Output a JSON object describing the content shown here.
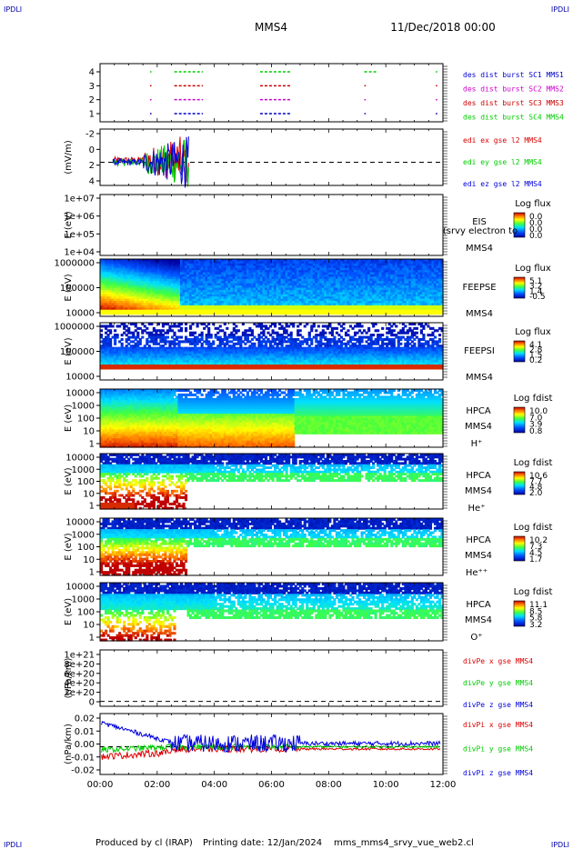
{
  "corner_label": "IPDLI",
  "header": {
    "spacecraft": "MMS4",
    "date": "11/Dec/2018 00:00"
  },
  "footer": {
    "produced_by": "Produced by cl (IRAP)",
    "printing_date": "Printing date: 12/Jan/2024",
    "file": "mms_mms4_srvy_vue_web2.cl"
  },
  "time_axis": {
    "ticks": [
      "00:00",
      "02:00",
      "04:00",
      "06:00",
      "08:00",
      "10:00",
      "12:00"
    ],
    "range_hours": [
      0,
      12
    ]
  },
  "chart_data": [
    {
      "type": "scatter",
      "id": "burst",
      "ylabel": "",
      "ylim": [
        0.5,
        4.5
      ],
      "yticks": [
        "1",
        "2",
        "3",
        "4"
      ],
      "series": [
        {
          "name": "des dist burst SC1 MMS1",
          "color": "#0000cc",
          "level": 1,
          "intervals": [
            [
              1.75,
              1.8
            ],
            [
              2.6,
              3.6
            ],
            [
              5.6,
              6.7
            ],
            [
              9.25,
              9.3
            ],
            [
              11.75,
              11.8
            ]
          ]
        },
        {
          "name": "des dist burst SC2 MMS2",
          "color": "#cc00cc",
          "level": 2,
          "intervals": [
            [
              1.75,
              1.8
            ],
            [
              2.6,
              3.6
            ],
            [
              5.6,
              6.7
            ],
            [
              9.25,
              9.3
            ],
            [
              11.75,
              11.8
            ]
          ]
        },
        {
          "name": "des dist burst SC3 MMS3",
          "color": "#cc0000",
          "level": 3,
          "intervals": [
            [
              1.75,
              1.8
            ],
            [
              2.6,
              3.6
            ],
            [
              5.6,
              6.7
            ],
            [
              9.25,
              9.3
            ],
            [
              11.75,
              11.8
            ]
          ]
        },
        {
          "name": "des dist burst SC4 MMS4",
          "color": "#00cc00",
          "level": 4,
          "intervals": [
            [
              1.75,
              1.8
            ],
            [
              2.6,
              3.6
            ],
            [
              5.6,
              6.7
            ],
            [
              9.25,
              9.7
            ],
            [
              11.75,
              11.8
            ]
          ]
        }
      ]
    },
    {
      "type": "line",
      "id": "edi",
      "ylabel": "(mV/m)",
      "ylim": [
        -3.5,
        5
      ],
      "yticks": [
        "-2",
        "0",
        "2",
        "4"
      ],
      "series": [
        {
          "name": "edi ex gse l2 MMS4",
          "color": "#dd0000"
        },
        {
          "name": "edi ey gse l2 MMS4",
          "color": "#00cc00"
        },
        {
          "name": "edi ez gse l2 MMS4",
          "color": "#0000dd"
        }
      ]
    },
    {
      "type": "heatmap",
      "id": "eis",
      "ylabel": "E (eV)",
      "yticks": [
        "1e+07",
        "1e+06",
        "1e+05",
        "1e+04"
      ],
      "labels": [
        "EIS",
        "(srvy electron to",
        "MMS4"
      ],
      "colorbar": {
        "title": "Log flux",
        "ticks": [
          "0.0",
          "0.0",
          "0.0",
          "0.0"
        ]
      }
    },
    {
      "type": "heatmap",
      "id": "feepse",
      "ylabel": "E (eV)",
      "yticks": [
        "1000000",
        "100000",
        "10000"
      ],
      "labels": [
        "FEEPSE",
        "MMS4"
      ],
      "colorbar": {
        "title": "Log flux",
        "ticks": [
          "5.1",
          "3.2",
          "1.4",
          "-0.5"
        ]
      }
    },
    {
      "type": "heatmap",
      "id": "feepsi",
      "ylabel": "E (eV)",
      "yticks": [
        "1000000",
        "100000",
        "10000"
      ],
      "labels": [
        "FEEPSI",
        "MMS4"
      ],
      "colorbar": {
        "title": "Log flux",
        "ticks": [
          "4.1",
          "2.8",
          "1.5",
          "0.2"
        ]
      }
    },
    {
      "type": "heatmap",
      "id": "hpca_h",
      "ylabel": "E (eV)",
      "yticks": [
        "10000",
        "1000",
        "100",
        "10",
        "1"
      ],
      "labels": [
        "HPCA",
        "MMS4",
        "H⁺"
      ],
      "colorbar": {
        "title": "Log fdist",
        "ticks": [
          "10.0",
          "7.0",
          "3.9",
          "0.8"
        ]
      }
    },
    {
      "type": "heatmap",
      "id": "hpca_he",
      "ylabel": "E (eV)",
      "yticks": [
        "10000",
        "1000",
        "100",
        "10",
        "1"
      ],
      "labels": [
        "HPCA",
        "MMS4",
        "He⁺"
      ],
      "colorbar": {
        "title": "Log fdist",
        "ticks": [
          "10.6",
          "7.7",
          "4.8",
          "2.0"
        ]
      }
    },
    {
      "type": "heatmap",
      "id": "hpca_hepp",
      "ylabel": "E (eV)",
      "yticks": [
        "10000",
        "1000",
        "100",
        "10",
        "1"
      ],
      "labels": [
        "HPCA",
        "MMS4",
        "He⁺⁺"
      ],
      "colorbar": {
        "title": "Log fdist",
        "ticks": [
          "10.2",
          "7.3",
          "4.5",
          "1.7"
        ]
      }
    },
    {
      "type": "heatmap",
      "id": "hpca_o",
      "ylabel": "E (eV)",
      "yticks": [
        "10000",
        "1000",
        "100",
        "10",
        "1"
      ],
      "labels": [
        "HPCA",
        "MMS4",
        "O⁺"
      ],
      "colorbar": {
        "title": "Log fdist",
        "ticks": [
          "11.1",
          "8.5",
          "5.8",
          "3.2"
        ]
      }
    },
    {
      "type": "line",
      "id": "divpe",
      "ylabel": "(nPa/km)",
      "ylim": [
        -1e+20,
        1.05e+21
      ],
      "yticks": [
        "1e+21",
        "8e+20",
        "6e+20",
        "4e+20",
        "2e+20",
        "0"
      ],
      "series": [
        {
          "name": "divPe x gse MMS4",
          "color": "#dd0000"
        },
        {
          "name": "divPe y gse MMS4",
          "color": "#00cc00"
        },
        {
          "name": "divPe z gse MMS4",
          "color": "#0000dd"
        }
      ]
    },
    {
      "type": "line",
      "id": "divpi",
      "ylabel": "(nPa/km)",
      "ylim": [
        -0.025,
        0.03
      ],
      "yticks": [
        "0.02",
        "0.01",
        "0.00",
        "-0.01",
        "-0.02"
      ],
      "series": [
        {
          "name": "divPi x gse MMS4",
          "color": "#dd0000"
        },
        {
          "name": "divPi y gse MMS4",
          "color": "#00cc00"
        },
        {
          "name": "divPi z gse MMS4",
          "color": "#0000dd"
        }
      ]
    }
  ]
}
